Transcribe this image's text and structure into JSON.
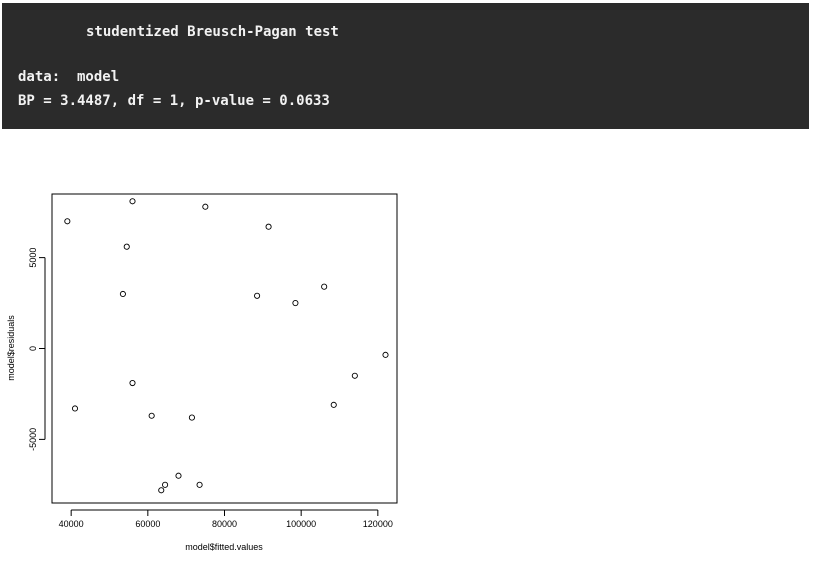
{
  "console": {
    "test_title": "studentized Breusch-Pagan test",
    "data_line": "data:  model",
    "result_line": "BP = 3.4487, df = 1, p-value = 0.0633"
  },
  "chart_data": {
    "type": "scatter",
    "xlabel": "model$fitted.values",
    "ylabel": "model$residuals",
    "xlim": [
      35000,
      125000
    ],
    "ylim": [
      -8500,
      8500
    ],
    "xticks": [
      40000,
      60000,
      80000,
      100000,
      120000
    ],
    "yticks": [
      -5000,
      0,
      5000
    ],
    "x_tick_labels": [
      "40000",
      "60000",
      "80000",
      "100000",
      "120000"
    ],
    "y_tick_labels": [
      "-5000",
      "0",
      "5000"
    ],
    "point_style": "open-circle",
    "grid": false,
    "points": [
      {
        "x": 39000,
        "y": 7000
      },
      {
        "x": 41000,
        "y": -3300
      },
      {
        "x": 53500,
        "y": 3000
      },
      {
        "x": 54500,
        "y": 5600
      },
      {
        "x": 56000,
        "y": 8100
      },
      {
        "x": 56000,
        "y": -1900
      },
      {
        "x": 61000,
        "y": -3700
      },
      {
        "x": 63500,
        "y": -7800
      },
      {
        "x": 64500,
        "y": -7500
      },
      {
        "x": 68000,
        "y": -7000
      },
      {
        "x": 71500,
        "y": -3800
      },
      {
        "x": 73500,
        "y": -7500
      },
      {
        "x": 75000,
        "y": 7800
      },
      {
        "x": 88500,
        "y": 2900
      },
      {
        "x": 91500,
        "y": 6700
      },
      {
        "x": 98500,
        "y": 2500
      },
      {
        "x": 106000,
        "y": 3400
      },
      {
        "x": 108500,
        "y": -3100
      },
      {
        "x": 114000,
        "y": -1500
      },
      {
        "x": 122000,
        "y": -350
      }
    ]
  }
}
